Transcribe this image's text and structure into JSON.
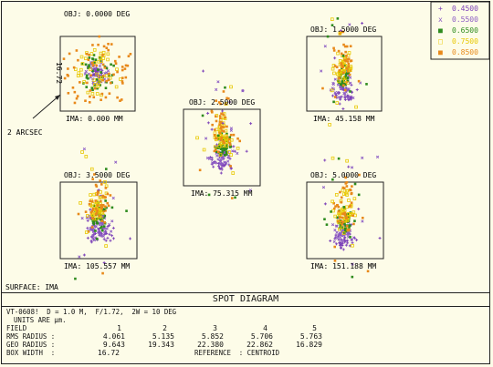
{
  "legend": {
    "items": [
      {
        "label": "0.4500",
        "color": "#7b3fb8"
      },
      {
        "label": "0.5500",
        "color": "#8c5cc4"
      },
      {
        "label": "0.6500",
        "color": "#2e8b1e"
      },
      {
        "label": "0.7500",
        "color": "#e8c800"
      },
      {
        "label": "0.8500",
        "color": "#e8891a"
      }
    ]
  },
  "fields": [
    {
      "obj": "OBJ: 0.0000 DEG",
      "ima": "IMA: 0.000 MM"
    },
    {
      "obj": "OBJ: 1.5000 DEG",
      "ima": "IMA: 45.158 MM"
    },
    {
      "obj": "OBJ: 2.5000 DEG",
      "ima": "IMA: 75.315 MM"
    },
    {
      "obj": "OBJ: 3.5000 DEG",
      "ima": "IMA: 105.557 MM"
    },
    {
      "obj": "OBJ: 5.0000 DEG",
      "ima": "IMA: 151.188 MM"
    }
  ],
  "box_side_label": "16.72",
  "scale_note": "2 ARCSEC",
  "surface_label": "SURFACE: IMA",
  "footer": {
    "title": "SPOT DIAGRAM",
    "line1": "VT-0608!  D = 1.0 M,  F/1.72,  2W = 10 DEG",
    "units": "UNITS ARE µm.",
    "field_label": "FIELD",
    "field_numbers": [
      "1",
      "2",
      "3",
      "4",
      "5"
    ],
    "rms_label": "RMS RADIUS :",
    "rms_values": [
      "4.061",
      "5.135",
      "5.852",
      "5.706",
      "5.763"
    ],
    "geo_label": "GEO RADIUS :",
    "geo_values": [
      "9.643",
      "19.343",
      "22.380",
      "22.862",
      "16.829"
    ],
    "box_label": "BOX WIDTH  :",
    "box_value": "16.72",
    "reference": "REFERENCE  : CENTROID"
  }
}
